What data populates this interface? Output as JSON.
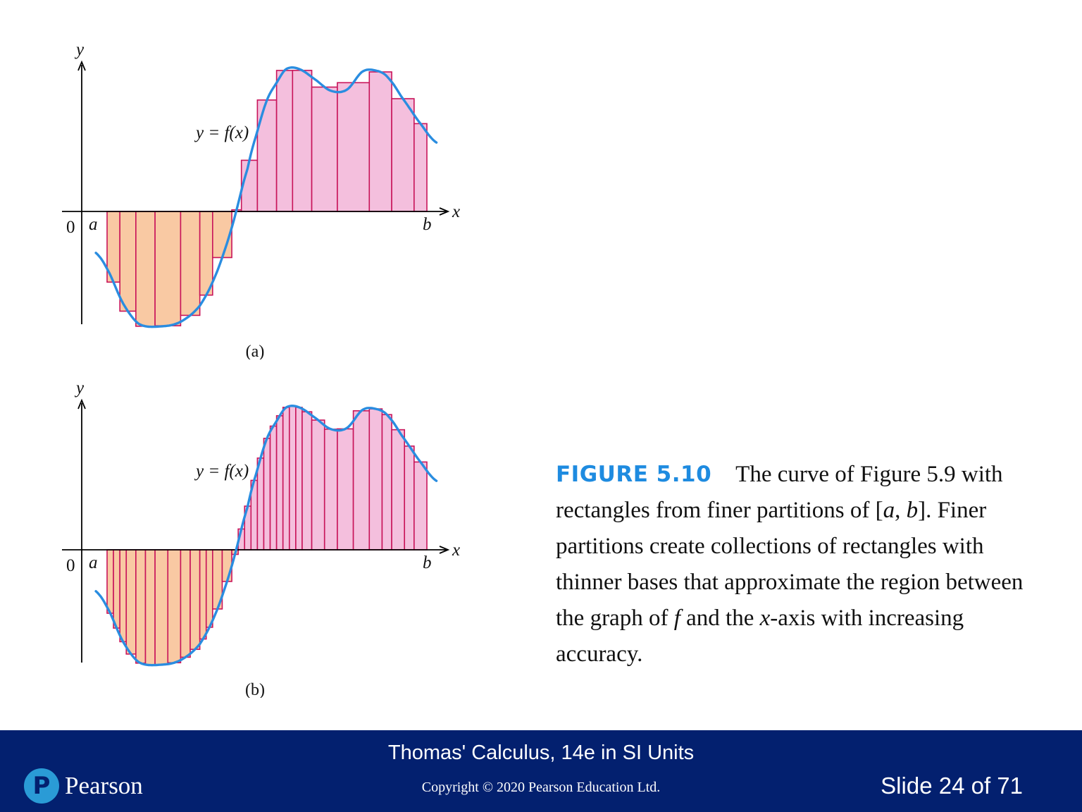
{
  "figures": [
    {
      "panel_label": "(a)",
      "curve_label": "y = f(x)",
      "x_axis_label": "x",
      "y_axis_label": "y",
      "origin_label": "0",
      "left_endpoint_label": "a",
      "right_endpoint_label": "b",
      "partition": [
        0.0,
        0.04,
        0.09,
        0.15,
        0.23,
        0.29,
        0.33,
        0.39,
        0.42,
        0.47,
        0.53,
        0.58,
        0.64,
        0.72,
        0.82,
        0.89,
        0.96,
        1.0
      ]
    },
    {
      "panel_label": "(b)",
      "curve_label": "y = f(x)",
      "x_axis_label": "x",
      "y_axis_label": "y",
      "origin_label": "0",
      "left_endpoint_label": "a",
      "right_endpoint_label": "b",
      "partition": [
        0.0,
        0.02,
        0.04,
        0.06,
        0.09,
        0.12,
        0.15,
        0.19,
        0.23,
        0.26,
        0.29,
        0.31,
        0.33,
        0.36,
        0.39,
        0.41,
        0.43,
        0.45,
        0.47,
        0.49,
        0.51,
        0.53,
        0.55,
        0.57,
        0.59,
        0.61,
        0.64,
        0.68,
        0.72,
        0.77,
        0.82,
        0.86,
        0.89,
        0.93,
        0.96,
        1.0
      ]
    }
  ],
  "caption": {
    "label": "FIGURE 5.10",
    "text": {
      "p1": "The curve of Figure 5.9 with rectangles from finer partitions of [",
      "a": "a",
      "comma": ", ",
      "b": "b",
      "p2": "]. Finer partitions create collections of rectangles with thinner bases that approximate the region between the graph of ",
      "f": "f",
      "p3": " and the ",
      "x": "x",
      "p4": "-axis with increasing accuracy."
    }
  },
  "footer": {
    "book_title": "Thomas' Calculus, 14e in SI Units",
    "copyright": "Copyright © 2020 Pearson Education Ltd.",
    "slide_number": "Slide 24 of 71",
    "logo_letter": "P",
    "logo_text": "Pearson"
  },
  "colors": {
    "curve": "#2a8de0",
    "positive_fill": "#f4bfdd",
    "negative_fill": "#f9c9a3",
    "rect_stroke": "#c8145a",
    "footer_bg": "#03206f",
    "caption_label": "#1e8be0"
  }
}
